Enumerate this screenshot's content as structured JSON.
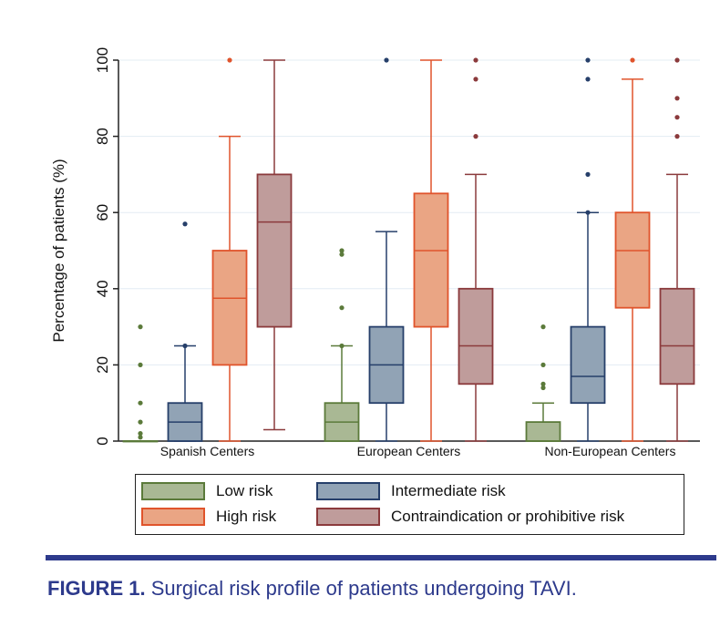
{
  "chart_data": {
    "type": "boxplot",
    "ylabel": "Percentage of patients (%)",
    "ylim": [
      0,
      100
    ],
    "yticks": [
      0,
      20,
      40,
      60,
      80,
      100
    ],
    "grid": true,
    "legend_position": "bottom",
    "categories": [
      "Spanish Centers",
      "European Centers",
      "Non-European Centers"
    ],
    "series": [
      {
        "name": "Low risk",
        "fill": "#a9b894",
        "stroke": "#5b7a3a",
        "boxes": [
          {
            "q1": 0,
            "median": 0,
            "q3": 0,
            "low": 0,
            "high": 0,
            "outliers": [
              30,
              20,
              10,
              5,
              2,
              1
            ]
          },
          {
            "q1": 0,
            "median": 5,
            "q3": 10,
            "low": 0,
            "high": 25,
            "outliers": [
              50,
              49,
              35,
              25
            ]
          },
          {
            "q1": 0,
            "median": 0,
            "q3": 5,
            "low": 0,
            "high": 10,
            "outliers": [
              30,
              20,
              15,
              14
            ]
          }
        ]
      },
      {
        "name": "Intermediate risk",
        "fill": "#91a3b5",
        "stroke": "#263f6a",
        "boxes": [
          {
            "q1": 0,
            "median": 5,
            "q3": 10,
            "low": 0,
            "high": 25,
            "outliers": [
              57,
              25
            ]
          },
          {
            "q1": 10,
            "median": 20,
            "q3": 30,
            "low": 0,
            "high": 55,
            "outliers": [
              100
            ]
          },
          {
            "q1": 10,
            "median": 17,
            "q3": 30,
            "low": 0,
            "high": 60,
            "outliers": [
              100,
              95,
              70,
              60
            ]
          }
        ]
      },
      {
        "name": "High risk",
        "fill": "#eaa584",
        "stroke": "#e0542c",
        "boxes": [
          {
            "q1": 20,
            "median": 37.5,
            "q3": 50,
            "low": 0,
            "high": 80,
            "outliers": [
              100
            ]
          },
          {
            "q1": 30,
            "median": 50,
            "q3": 65,
            "low": 0,
            "high": 100,
            "outliers": []
          },
          {
            "q1": 35,
            "median": 50,
            "q3": 60,
            "low": 0,
            "high": 95,
            "outliers": [
              100
            ]
          }
        ]
      },
      {
        "name": "Contraindication or prohibitive risk",
        "fill": "#bf9c9b",
        "stroke": "#8b3a3c",
        "boxes": [
          {
            "q1": 30,
            "median": 57.5,
            "q3": 70,
            "low": 3,
            "high": 100,
            "outliers": []
          },
          {
            "q1": 15,
            "median": 25,
            "q3": 40,
            "low": 0,
            "high": 70,
            "outliers": [
              100,
              95,
              80
            ]
          },
          {
            "q1": 15,
            "median": 25,
            "q3": 40,
            "low": 0,
            "high": 70,
            "outliers": [
              100,
              90,
              85,
              80
            ]
          }
        ]
      }
    ]
  },
  "caption": {
    "label": "FIGURE 1.",
    "text": " Surgical risk profile of patients undergoing TAVI."
  }
}
